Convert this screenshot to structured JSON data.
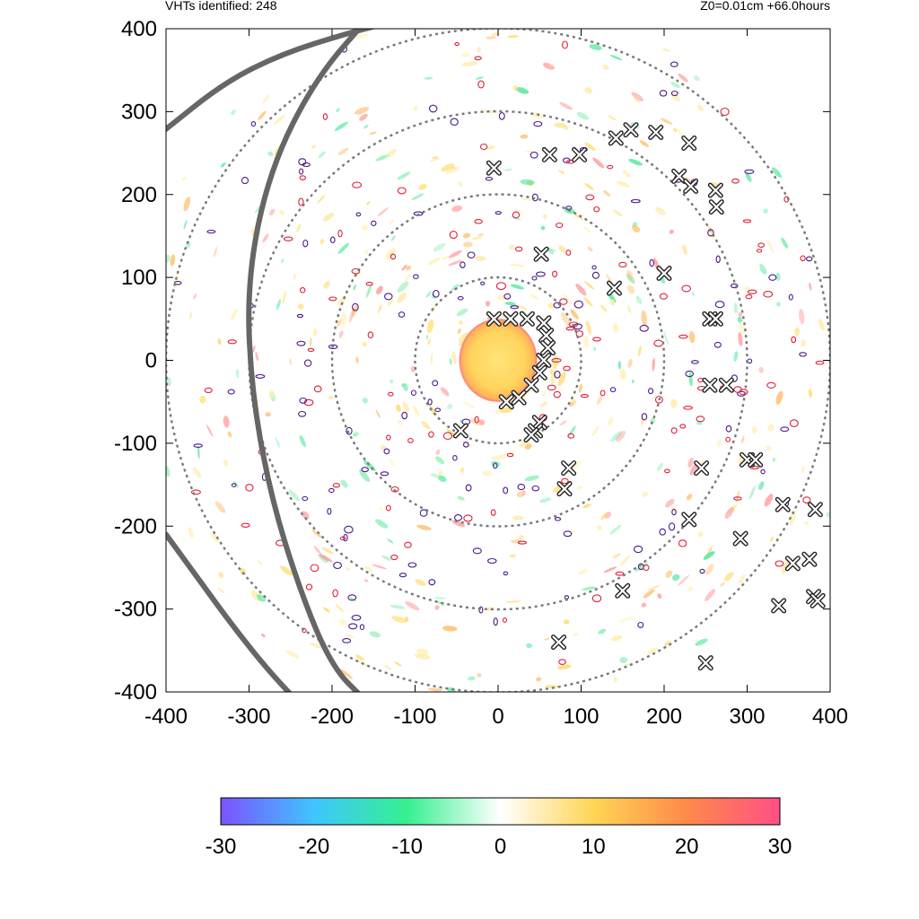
{
  "header": {
    "left_text": "VHTs identified: 248",
    "right_text": "Z0=0.01cm  +66.0hours"
  },
  "chart_data": {
    "type": "heatmap",
    "title": "",
    "xlabel": "",
    "ylabel": "",
    "xlim": [
      -400,
      400
    ],
    "ylim": [
      -400,
      400
    ],
    "xticks": [
      -400,
      -300,
      -200,
      -100,
      0,
      100,
      200,
      300,
      400
    ],
    "yticks": [
      -400,
      -300,
      -200,
      -100,
      0,
      100,
      200,
      300,
      400
    ],
    "grid": false,
    "range_rings_radius": [
      100,
      200,
      300,
      400
    ],
    "colorbar": {
      "range": [
        -30,
        30
      ],
      "ticks": [
        -30,
        -20,
        -10,
        0,
        10,
        20,
        30
      ],
      "colors": [
        "#7b52ff",
        "#3fc5ff",
        "#35f08f",
        "#ffffff",
        "#ffd555",
        "#ff8a4a",
        "#ff4f85"
      ]
    },
    "core": {
      "center": [
        0,
        0
      ],
      "value": 20
    },
    "vht_count": 248,
    "vht_markers": [
      [
        -5,
        50
      ],
      [
        15,
        50
      ],
      [
        35,
        50
      ],
      [
        55,
        45
      ],
      [
        58,
        30
      ],
      [
        60,
        15
      ],
      [
        55,
        0
      ],
      [
        50,
        -15
      ],
      [
        40,
        -30
      ],
      [
        25,
        -45
      ],
      [
        10,
        -50
      ],
      [
        50,
        -75
      ],
      [
        45,
        -85
      ],
      [
        40,
        -90
      ],
      [
        -45,
        -85
      ],
      [
        -5,
        232
      ],
      [
        62,
        248
      ],
      [
        98,
        248
      ],
      [
        142,
        268
      ],
      [
        160,
        278
      ],
      [
        190,
        275
      ],
      [
        230,
        262
      ],
      [
        218,
        222
      ],
      [
        232,
        210
      ],
      [
        262,
        205
      ],
      [
        263,
        185
      ],
      [
        52,
        128
      ],
      [
        140,
        87
      ],
      [
        200,
        105
      ],
      [
        255,
        50
      ],
      [
        262,
        50
      ],
      [
        255,
        -30
      ],
      [
        275,
        -30
      ],
      [
        245,
        -130
      ],
      [
        300,
        -120
      ],
      [
        310,
        -120
      ],
      [
        85,
        -130
      ],
      [
        80,
        -155
      ],
      [
        230,
        -192
      ],
      [
        292,
        -215
      ],
      [
        343,
        -174
      ],
      [
        382,
        -180
      ],
      [
        355,
        -245
      ],
      [
        375,
        -240
      ],
      [
        380,
        -285
      ],
      [
        385,
        -290
      ],
      [
        338,
        -296
      ],
      [
        150,
        -278
      ],
      [
        73,
        -340
      ],
      [
        250,
        -365
      ]
    ],
    "spiral_bands": [
      [
        [
          -405,
          275
        ],
        [
          -330,
          335
        ],
        [
          -260,
          370
        ],
        [
          -180,
          395
        ],
        [
          -120,
          410
        ]
      ],
      [
        [
          -150,
          420
        ],
        [
          -220,
          340
        ],
        [
          -275,
          230
        ],
        [
          -302,
          100
        ],
        [
          -298,
          -30
        ],
        [
          -275,
          -160
        ],
        [
          -238,
          -280
        ],
        [
          -200,
          -370
        ],
        [
          -160,
          -410
        ]
      ],
      [
        [
          -400,
          -210
        ],
        [
          -360,
          -265
        ],
        [
          -320,
          -320
        ],
        [
          -280,
          -370
        ],
        [
          -248,
          -405
        ]
      ]
    ]
  }
}
